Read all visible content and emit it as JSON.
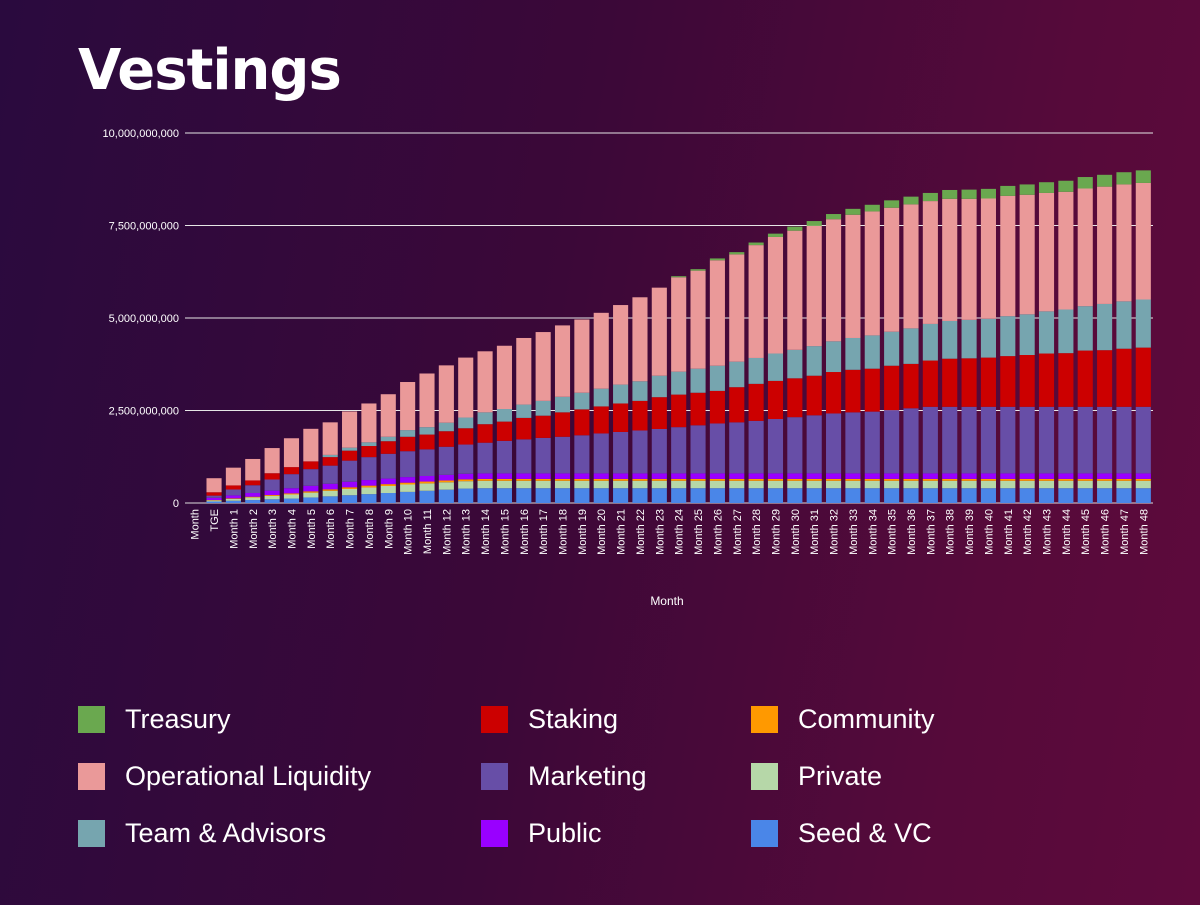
{
  "title": "Vestings",
  "chart_data": {
    "type": "bar",
    "stacked": true,
    "xlabel": "Month",
    "ylabel": "",
    "ylim": [
      0,
      10000000000
    ],
    "yticks": [
      {
        "value": 0,
        "label": "0"
      },
      {
        "value": 2500000000,
        "label": "2,500,000,000"
      },
      {
        "value": 5000000000,
        "label": "5,000,000,000"
      },
      {
        "value": 7500000000,
        "label": "7,500,000,000"
      },
      {
        "value": 10000000000,
        "label": "10,000,000,000"
      }
    ],
    "categories": [
      "Month",
      "TGE",
      "Month 1",
      "Month 2",
      "Month 3",
      "Month 4",
      "Month 5",
      "Month 6",
      "Month 7",
      "Month 8",
      "Month 9",
      "Month 10",
      "Month 11",
      "Month 12",
      "Month 13",
      "Month 14",
      "Month 15",
      "Month 16",
      "Month 17",
      "Month 18",
      "Month 19",
      "Month 20",
      "Month 21",
      "Month 22",
      "Month 23",
      "Month 24",
      "Month 25",
      "Month 26",
      "Month 27",
      "Month 28",
      "Month 29",
      "Month 30",
      "Month 31",
      "Month 32",
      "Month 33",
      "Month 34",
      "Month 35",
      "Month 36",
      "Month 37",
      "Month 38",
      "Month 39",
      "Month 40",
      "Month 41",
      "Month 42",
      "Month 43",
      "Month 44",
      "Month 45",
      "Month 46",
      "Month 47",
      "Month 48"
    ],
    "series": [
      {
        "name": "Seed & VC",
        "color": "#4a86e8",
        "values": [
          0,
          40000000,
          60000000,
          80000000,
          100000000,
          120000000,
          150000000,
          180000000,
          210000000,
          240000000,
          270000000,
          300000000,
          330000000,
          360000000,
          390000000,
          400000000,
          400000000,
          400000000,
          400000000,
          400000000,
          400000000,
          400000000,
          400000000,
          400000000,
          400000000,
          400000000,
          400000000,
          400000000,
          400000000,
          400000000,
          400000000,
          400000000,
          400000000,
          400000000,
          400000000,
          400000000,
          400000000,
          400000000,
          400000000,
          400000000,
          400000000,
          400000000,
          400000000,
          400000000,
          400000000,
          400000000,
          400000000,
          400000000,
          400000000,
          400000000
        ]
      },
      {
        "name": "Private",
        "color": "#b6d7a8",
        "values": [
          0,
          30000000,
          50000000,
          70000000,
          90000000,
          110000000,
          130000000,
          150000000,
          170000000,
          180000000,
          190000000,
          200000000,
          200000000,
          200000000,
          200000000,
          200000000,
          200000000,
          200000000,
          200000000,
          200000000,
          200000000,
          200000000,
          200000000,
          200000000,
          200000000,
          200000000,
          200000000,
          200000000,
          200000000,
          200000000,
          200000000,
          200000000,
          200000000,
          200000000,
          200000000,
          200000000,
          200000000,
          200000000,
          200000000,
          200000000,
          200000000,
          200000000,
          200000000,
          200000000,
          200000000,
          200000000,
          200000000,
          200000000,
          200000000,
          200000000
        ]
      },
      {
        "name": "Community",
        "color": "#ff9900",
        "values": [
          0,
          10000000,
          15000000,
          20000000,
          25000000,
          30000000,
          35000000,
          40000000,
          45000000,
          50000000,
          50000000,
          50000000,
          50000000,
          50000000,
          50000000,
          50000000,
          50000000,
          50000000,
          50000000,
          50000000,
          50000000,
          50000000,
          50000000,
          50000000,
          50000000,
          50000000,
          50000000,
          50000000,
          50000000,
          50000000,
          50000000,
          50000000,
          50000000,
          50000000,
          50000000,
          50000000,
          50000000,
          50000000,
          50000000,
          50000000,
          50000000,
          50000000,
          50000000,
          50000000,
          50000000,
          50000000,
          50000000,
          50000000,
          50000000,
          50000000
        ]
      },
      {
        "name": "Public",
        "color": "#9900ff",
        "values": [
          0,
          60000000,
          80000000,
          100000000,
          120000000,
          140000000,
          150000000,
          150000000,
          150000000,
          150000000,
          150000000,
          150000000,
          150000000,
          150000000,
          150000000,
          150000000,
          150000000,
          150000000,
          150000000,
          150000000,
          150000000,
          150000000,
          150000000,
          150000000,
          150000000,
          150000000,
          150000000,
          150000000,
          150000000,
          150000000,
          150000000,
          150000000,
          150000000,
          150000000,
          150000000,
          150000000,
          150000000,
          150000000,
          150000000,
          150000000,
          150000000,
          150000000,
          150000000,
          150000000,
          150000000,
          150000000,
          150000000,
          150000000,
          150000000,
          150000000
        ]
      },
      {
        "name": "Marketing",
        "color": "#674ea7",
        "values": [
          0,
          60000000,
          160000000,
          210000000,
          300000000,
          380000000,
          450000000,
          490000000,
          570000000,
          620000000,
          670000000,
          700000000,
          720000000,
          760000000,
          790000000,
          830000000,
          880000000,
          920000000,
          960000000,
          990000000,
          1030000000,
          1080000000,
          1120000000,
          1160000000,
          1200000000,
          1250000000,
          1300000000,
          1350000000,
          1380000000,
          1420000000,
          1470000000,
          1520000000,
          1570000000,
          1620000000,
          1650000000,
          1670000000,
          1710000000,
          1760000000,
          1800000000,
          1800000000,
          1800000000,
          1800000000,
          1800000000,
          1800000000,
          1800000000,
          1800000000,
          1800000000,
          1800000000,
          1800000000,
          1800000000
        ]
      },
      {
        "name": "Staking",
        "color": "#cc0000",
        "values": [
          0,
          90000000,
          110000000,
          130000000,
          170000000,
          190000000,
          210000000,
          230000000,
          270000000,
          300000000,
          340000000,
          390000000,
          400000000,
          420000000,
          440000000,
          500000000,
          520000000,
          580000000,
          600000000,
          660000000,
          700000000,
          730000000,
          770000000,
          800000000,
          860000000,
          880000000,
          880000000,
          880000000,
          950000000,
          1000000000,
          1030000000,
          1050000000,
          1070000000,
          1120000000,
          1150000000,
          1160000000,
          1200000000,
          1200000000,
          1250000000,
          1300000000,
          1310000000,
          1330000000,
          1370000000,
          1400000000,
          1440000000,
          1450000000,
          1520000000,
          1530000000,
          1570000000,
          1600000000
        ]
      },
      {
        "name": "Team & Advisors",
        "color": "#76a5af",
        "values": [
          0,
          0,
          0,
          0,
          0,
          0,
          0,
          60000000,
          80000000,
          100000000,
          120000000,
          180000000,
          200000000,
          230000000,
          290000000,
          320000000,
          340000000,
          360000000,
          400000000,
          420000000,
          450000000,
          480000000,
          510000000,
          530000000,
          580000000,
          620000000,
          650000000,
          680000000,
          690000000,
          700000000,
          740000000,
          770000000,
          800000000,
          830000000,
          860000000,
          900000000,
          920000000,
          960000000,
          990000000,
          1020000000,
          1040000000,
          1050000000,
          1080000000,
          1100000000,
          1140000000,
          1180000000,
          1200000000,
          1250000000,
          1280000000,
          1300000000
        ]
      },
      {
        "name": "Operational Liquidity",
        "color": "#ea9999",
        "values": [
          0,
          380000000,
          480000000,
          580000000,
          680000000,
          780000000,
          880000000,
          880000000,
          980000000,
          1050000000,
          1150000000,
          1300000000,
          1450000000,
          1550000000,
          1620000000,
          1650000000,
          1710000000,
          1800000000,
          1860000000,
          1930000000,
          1980000000,
          2050000000,
          2150000000,
          2270000000,
          2380000000,
          2550000000,
          2650000000,
          2850000000,
          2900000000,
          3050000000,
          3150000000,
          3220000000,
          3250000000,
          3300000000,
          3330000000,
          3350000000,
          3350000000,
          3350000000,
          3320000000,
          3300000000,
          3270000000,
          3250000000,
          3250000000,
          3230000000,
          3200000000,
          3180000000,
          3180000000,
          3170000000,
          3160000000,
          3150000000
        ]
      },
      {
        "name": "Treasury",
        "color": "#6aa84f",
        "values": [
          0,
          0,
          0,
          0,
          0,
          0,
          0,
          0,
          0,
          0,
          0,
          0,
          0,
          0,
          0,
          0,
          0,
          0,
          0,
          0,
          0,
          0,
          0,
          0,
          0,
          30000000,
          40000000,
          50000000,
          60000000,
          70000000,
          90000000,
          110000000,
          130000000,
          140000000,
          160000000,
          180000000,
          200000000,
          210000000,
          220000000,
          240000000,
          250000000,
          260000000,
          270000000,
          280000000,
          290000000,
          300000000,
          310000000,
          320000000,
          330000000,
          340000000
        ]
      }
    ]
  },
  "legend": [
    {
      "label": "Treasury",
      "color": "#6aa84f"
    },
    {
      "label": "Operational Liquidity",
      "color": "#ea9999"
    },
    {
      "label": "Team & Advisors",
      "color": "#76a5af"
    },
    {
      "label": "Staking",
      "color": "#cc0000"
    },
    {
      "label": "Marketing",
      "color": "#674ea7"
    },
    {
      "label": "Public",
      "color": "#9900ff"
    },
    {
      "label": "Community",
      "color": "#ff9900"
    },
    {
      "label": "Private",
      "color": "#b6d7a8"
    },
    {
      "label": "Seed & VC",
      "color": "#4a86e8"
    }
  ]
}
